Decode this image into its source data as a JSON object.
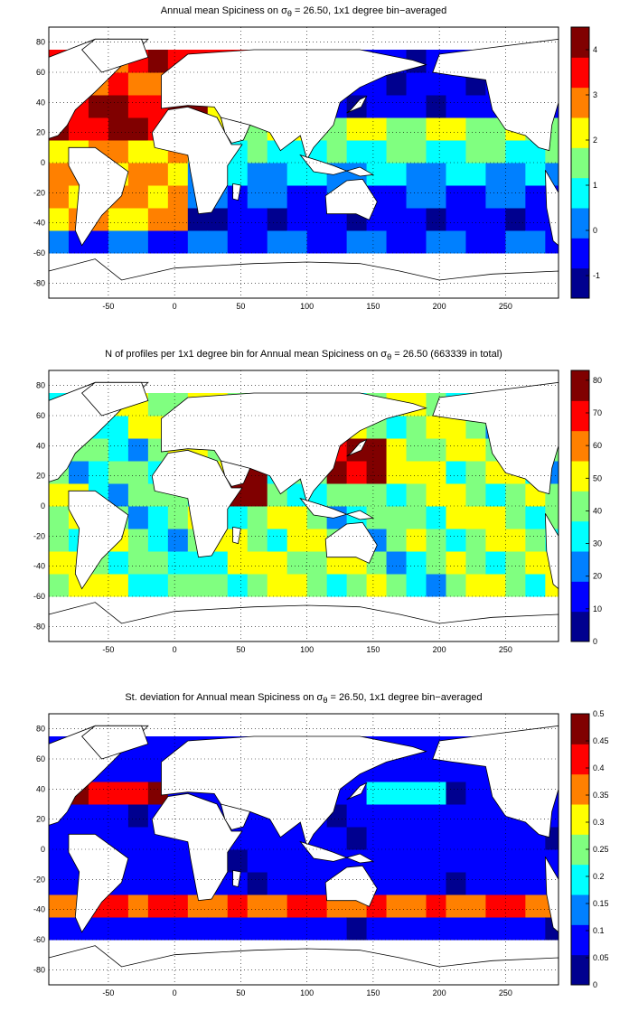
{
  "panels": [
    {
      "title_pre": "Annual mean Spiciness on σ",
      "title_sub": "θ",
      "title_post": " = 26.50, 1x1 degree bin−averaged",
      "cbar_ticks": [
        -1,
        0,
        1,
        2,
        3,
        4
      ],
      "cbar_range": [
        -1.5,
        4.5
      ],
      "palette": "spice"
    },
    {
      "title_pre": "N of profiles per 1x1 degree bin for Annual mean Spiciness on σ",
      "title_sub": "θ",
      "title_post": " = 26.50 (663339 in total)",
      "cbar_ticks": [
        0,
        10,
        20,
        30,
        40,
        50,
        60,
        70,
        80
      ],
      "cbar_range": [
        0,
        83
      ],
      "palette": "count"
    },
    {
      "title_pre": "St. deviation for Annual mean Spiciness on σ",
      "title_sub": "θ",
      "title_post": " = 26.50, 1x1 degree bin−averaged",
      "cbar_ticks": [
        0,
        0.05,
        0.1,
        0.15,
        0.2,
        0.25,
        0.3,
        0.35,
        0.4,
        0.45,
        0.5
      ],
      "cbar_range": [
        0,
        0.5
      ],
      "palette": "std"
    }
  ],
  "axes": {
    "x_ticks": [
      -50,
      0,
      50,
      100,
      150,
      200,
      250
    ],
    "y_ticks": [
      -80,
      -60,
      -40,
      -20,
      0,
      20,
      40,
      60,
      80
    ],
    "xlim": [
      -95,
      290
    ],
    "ylim": [
      -90,
      90
    ]
  },
  "colors": {
    "land": "#ffffff",
    "coast": "#000000",
    "grid": "#000000"
  }
}
